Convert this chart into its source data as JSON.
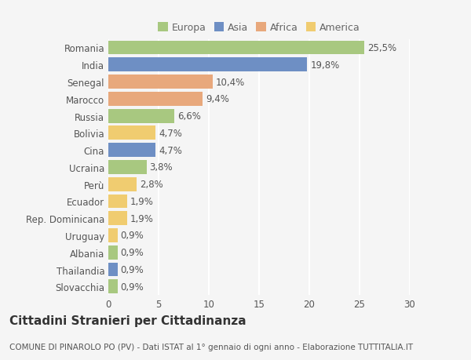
{
  "countries": [
    "Romania",
    "India",
    "Senegal",
    "Marocco",
    "Russia",
    "Bolivia",
    "Cina",
    "Ucraina",
    "Perù",
    "Ecuador",
    "Rep. Dominicana",
    "Uruguay",
    "Albania",
    "Thailandia",
    "Slovacchia"
  ],
  "values": [
    25.5,
    19.8,
    10.4,
    9.4,
    6.6,
    4.7,
    4.7,
    3.8,
    2.8,
    1.9,
    1.9,
    0.9,
    0.9,
    0.9,
    0.9
  ],
  "labels": [
    "25,5%",
    "19,8%",
    "10,4%",
    "9,4%",
    "6,6%",
    "4,7%",
    "4,7%",
    "3,8%",
    "2,8%",
    "1,9%",
    "1,9%",
    "0,9%",
    "0,9%",
    "0,9%",
    "0,9%"
  ],
  "continents": [
    "Europa",
    "Asia",
    "Africa",
    "Africa",
    "Europa",
    "America",
    "Asia",
    "Europa",
    "America",
    "America",
    "America",
    "America",
    "Europa",
    "Asia",
    "Europa"
  ],
  "continent_colors": {
    "Europa": "#a8c880",
    "Asia": "#6e8fc4",
    "Africa": "#e8a87c",
    "America": "#f0cc70"
  },
  "legend_order": [
    "Europa",
    "Asia",
    "Africa",
    "America"
  ],
  "title": "Cittadini Stranieri per Cittadinanza",
  "subtitle": "COMUNE DI PINAROLO PO (PV) - Dati ISTAT al 1° gennaio di ogni anno - Elaborazione TUTTITALIA.IT",
  "xlim": [
    0,
    30
  ],
  "xticks": [
    0,
    5,
    10,
    15,
    20,
    25,
    30
  ],
  "background_color": "#f5f5f5",
  "grid_color": "#ffffff",
  "bar_height": 0.82,
  "label_fontsize": 8.5,
  "tick_fontsize": 8.5,
  "title_fontsize": 11,
  "subtitle_fontsize": 7.5
}
